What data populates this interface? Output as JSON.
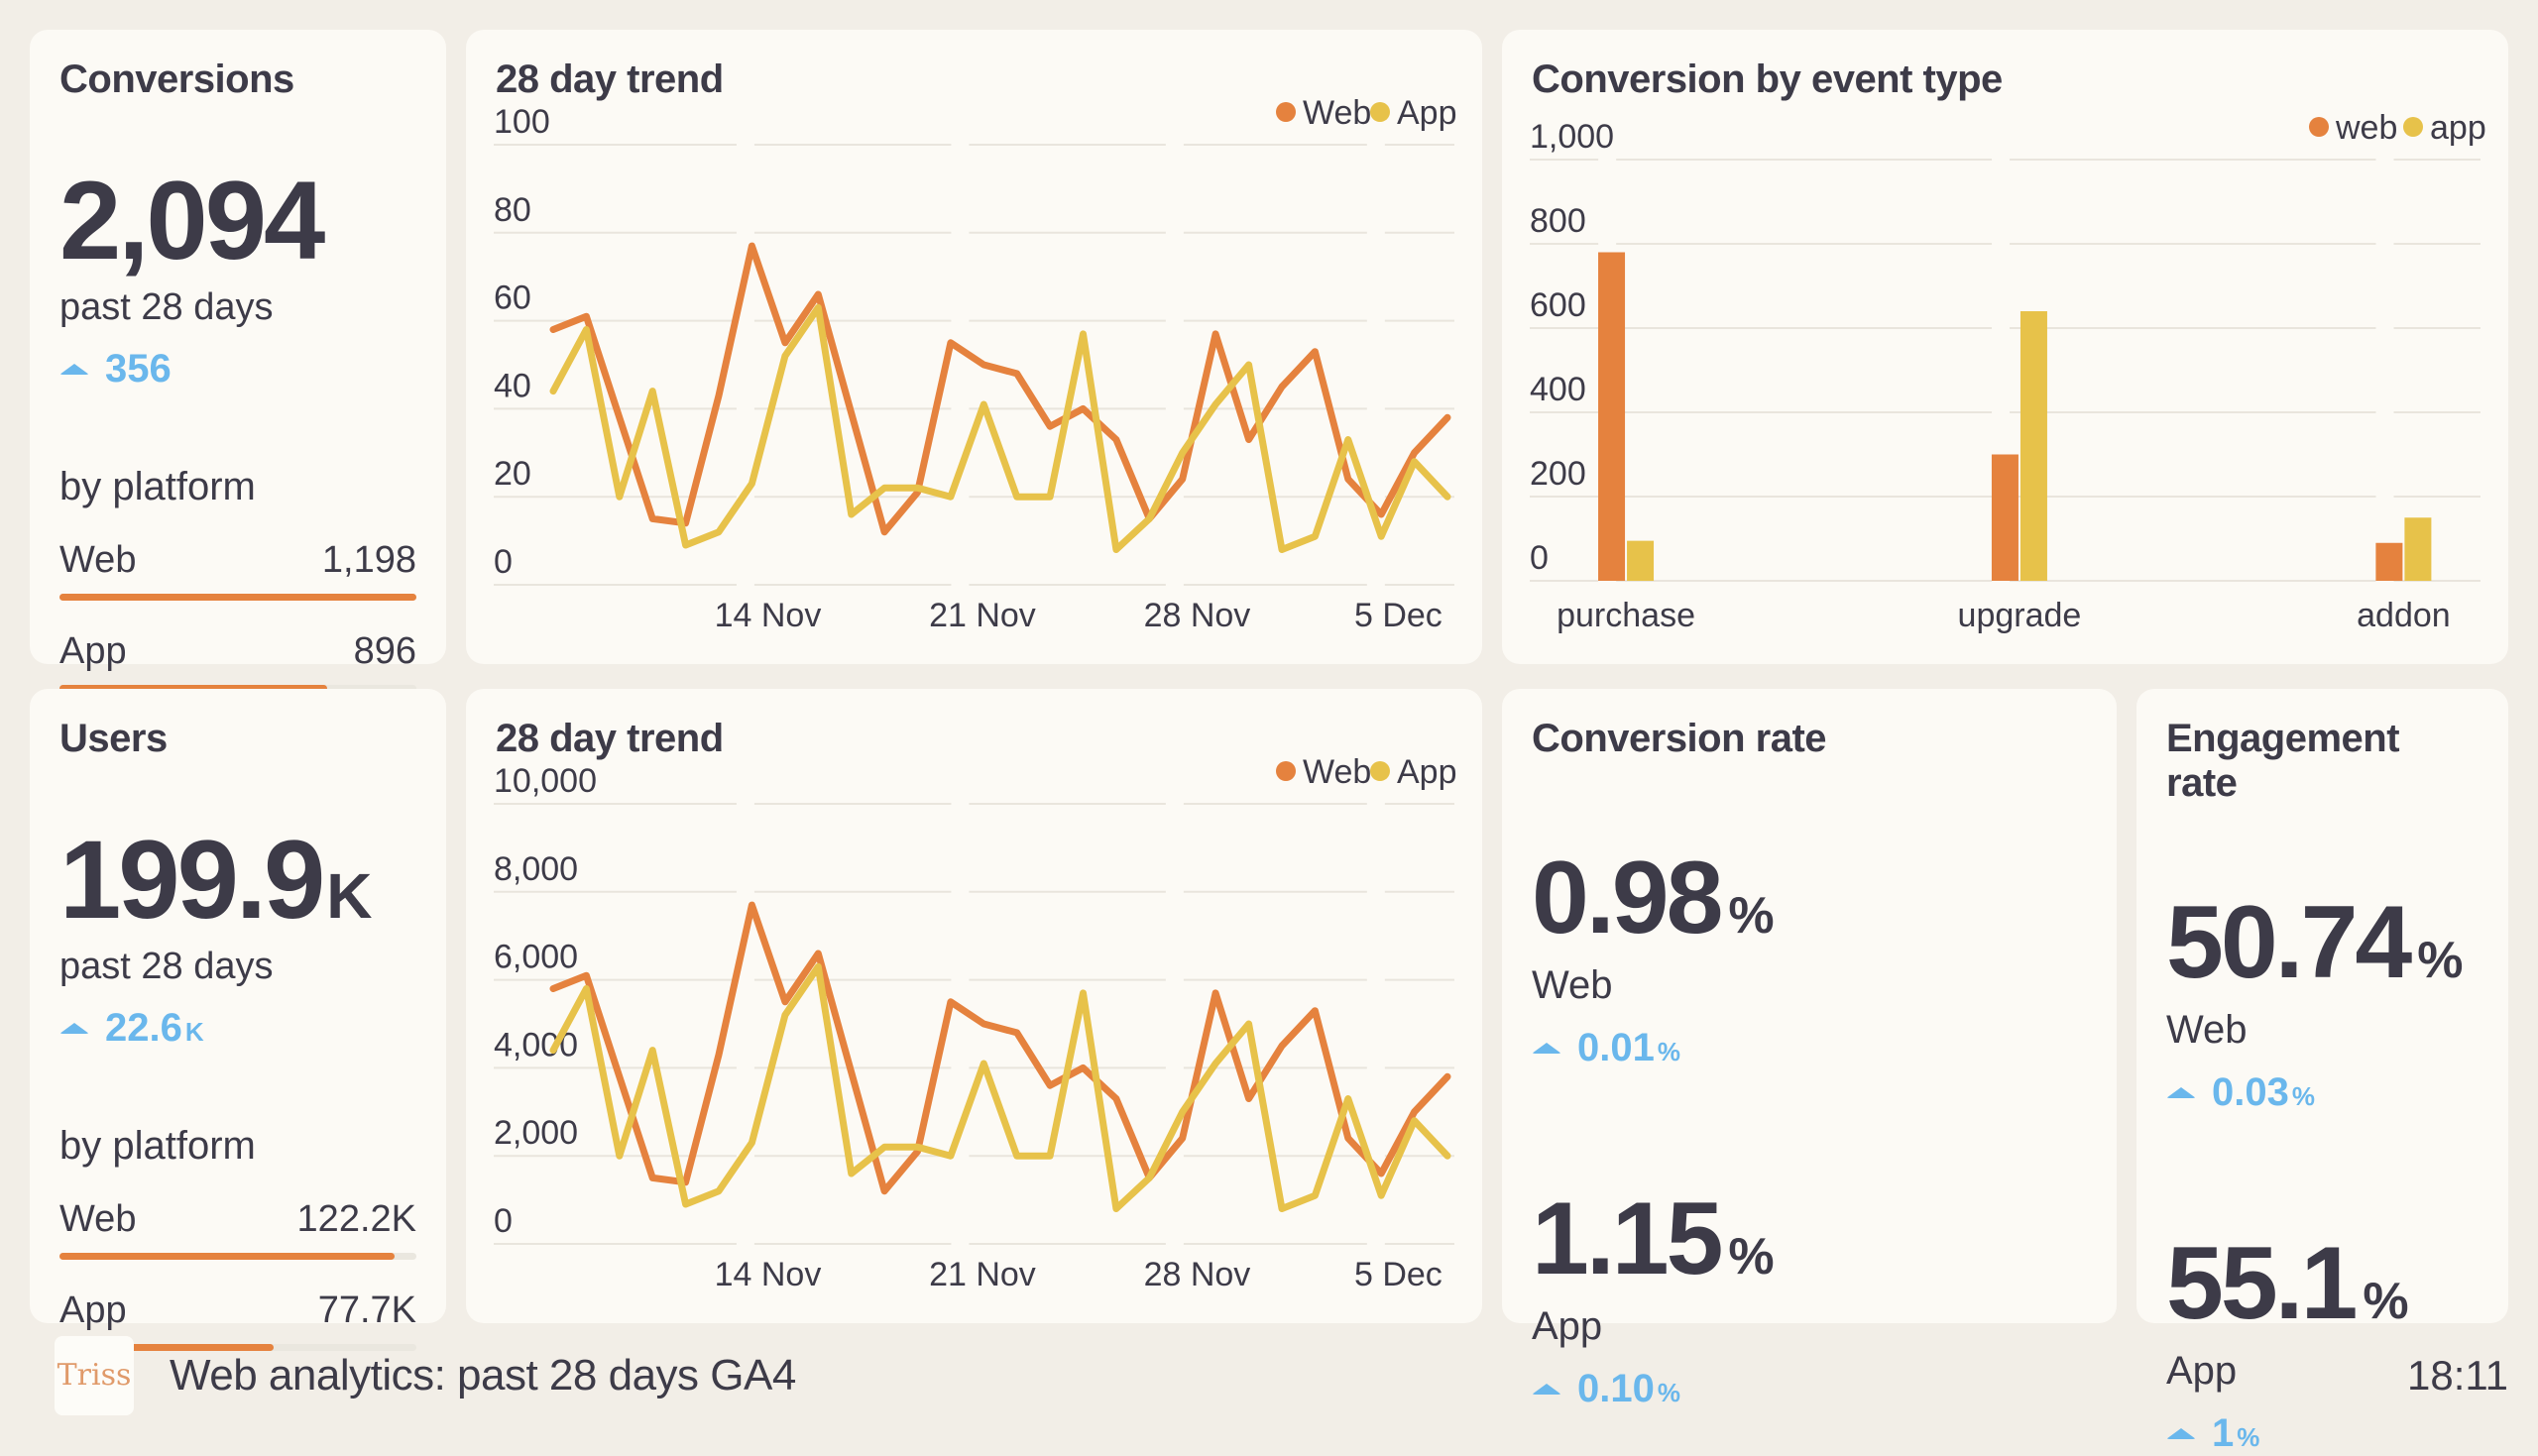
{
  "colors": {
    "background": "#f2eee7",
    "card": "#fcfaf5",
    "text": "#3d3b48",
    "accent_blue": "#6ab7ec",
    "web_orange": "#e5823e",
    "app_yellow": "#e7c24a",
    "gridline": "#e9e5dd",
    "bar_track": "#eae7df"
  },
  "cards": {
    "conversions": {
      "title": "Conversions",
      "value": "2,094",
      "value_suffix": "",
      "period": "past 28 days",
      "delta": "356",
      "delta_suffix": "",
      "by_platform_label": "by platform",
      "platforms": [
        {
          "label": "Web",
          "value": "1,198",
          "bar_pct": 100
        },
        {
          "label": "App",
          "value": "896",
          "bar_pct": 75
        }
      ]
    },
    "users": {
      "title": "Users",
      "value": "199.9",
      "value_suffix": "K",
      "period": "past 28 days",
      "delta": "22.6",
      "delta_suffix": "K",
      "by_platform_label": "by platform",
      "platforms": [
        {
          "label": "Web",
          "value": "122.2K",
          "bar_pct": 94
        },
        {
          "label": "App",
          "value": "77.7K",
          "bar_pct": 60
        }
      ]
    },
    "conversion_rate": {
      "title": "Conversion rate",
      "entries": [
        {
          "value": "0.98",
          "suffix": "%",
          "label": "Web",
          "delta": "0.01",
          "delta_suffix": "%"
        },
        {
          "value": "1.15",
          "suffix": "%",
          "label": "App",
          "delta": "0.10",
          "delta_suffix": "%"
        }
      ]
    },
    "engagement_rate": {
      "title": "Engagement rate",
      "entries": [
        {
          "value": "50.74",
          "suffix": "%",
          "label": "Web",
          "delta": "0.03",
          "delta_suffix": "%"
        },
        {
          "value": "55.1",
          "suffix": "%",
          "label": "App",
          "delta": "1",
          "delta_suffix": "%"
        }
      ]
    }
  },
  "chart_data": [
    {
      "type": "line",
      "title": "28 day trend",
      "ylabel": "",
      "xlabel": "",
      "ylim": [
        0,
        100
      ],
      "grid": true,
      "legend_position": "top-right",
      "yticks": [
        {
          "v": 0,
          "label": "0"
        },
        {
          "v": 20,
          "label": "20"
        },
        {
          "v": 40,
          "label": "40"
        },
        {
          "v": 60,
          "label": "60"
        },
        {
          "v": 80,
          "label": "80"
        },
        {
          "v": 100,
          "label": "100"
        }
      ],
      "x_ticks": [
        {
          "f": 0.24,
          "label": "14 Nov"
        },
        {
          "f": 0.48,
          "label": "21 Nov"
        },
        {
          "f": 0.72,
          "label": "28 Nov"
        },
        {
          "f": 0.945,
          "label": "5 Dec"
        }
      ],
      "series": [
        {
          "name": "Web",
          "color": "#e5823e",
          "values": [
            58,
            61,
            38,
            15,
            14,
            43,
            77,
            55,
            66,
            39,
            12,
            21,
            55,
            50,
            48,
            36,
            40,
            33,
            15,
            24,
            57,
            33,
            45,
            53,
            24,
            16,
            30,
            38
          ]
        },
        {
          "name": "App",
          "color": "#e7c24a",
          "values": [
            44,
            58,
            20,
            44,
            9,
            12,
            23,
            52,
            63,
            16,
            22,
            22,
            20,
            41,
            20,
            20,
            57,
            8,
            15,
            30,
            41,
            50,
            8,
            11,
            33,
            11,
            28,
            20
          ]
        }
      ]
    },
    {
      "type": "bar",
      "title": "Conversion by event type",
      "ylabel": "",
      "xlabel": "",
      "ylim": [
        0,
        1000
      ],
      "grid": true,
      "legend_position": "top-right",
      "yticks": [
        {
          "v": 0,
          "label": "0"
        },
        {
          "v": 200,
          "label": "200"
        },
        {
          "v": 400,
          "label": "400"
        },
        {
          "v": 600,
          "label": "600"
        },
        {
          "v": 800,
          "label": "800"
        },
        {
          "v": 1000,
          "label": "1,000"
        }
      ],
      "categories": [
        {
          "f": 0.09,
          "label": "purchase"
        },
        {
          "f": 0.51,
          "label": "upgrade"
        },
        {
          "f": 0.92,
          "label": "addon"
        }
      ],
      "series": [
        {
          "name": "web",
          "color": "#e5823e",
          "values": [
            780,
            300,
            90
          ]
        },
        {
          "name": "app",
          "color": "#e7c24a",
          "values": [
            95,
            640,
            150
          ]
        }
      ]
    },
    {
      "type": "line",
      "title": "28 day trend",
      "ylabel": "",
      "xlabel": "",
      "ylim": [
        0,
        10000
      ],
      "grid": true,
      "legend_position": "top-right",
      "yticks": [
        {
          "v": 0,
          "label": "0"
        },
        {
          "v": 2000,
          "label": "2,000"
        },
        {
          "v": 4000,
          "label": "4,000"
        },
        {
          "v": 6000,
          "label": "6,000"
        },
        {
          "v": 8000,
          "label": "8,000"
        },
        {
          "v": 10000,
          "label": "10,000"
        }
      ],
      "x_ticks": [
        {
          "f": 0.24,
          "label": "14 Nov"
        },
        {
          "f": 0.48,
          "label": "21 Nov"
        },
        {
          "f": 0.72,
          "label": "28 Nov"
        },
        {
          "f": 0.945,
          "label": "5 Dec"
        }
      ],
      "series": [
        {
          "name": "Web",
          "color": "#e5823e",
          "values": [
            5800,
            6100,
            3800,
            1500,
            1400,
            4300,
            7700,
            5500,
            6600,
            3900,
            1200,
            2100,
            5500,
            5000,
            4800,
            3600,
            4000,
            3300,
            1500,
            2400,
            5700,
            3300,
            4500,
            5300,
            2400,
            1600,
            3000,
            3800
          ]
        },
        {
          "name": "App",
          "color": "#e7c24a",
          "values": [
            4400,
            5800,
            2000,
            4400,
            900,
            1200,
            2300,
            5200,
            6300,
            1600,
            2200,
            2200,
            2000,
            4100,
            2000,
            2000,
            5700,
            800,
            1500,
            3000,
            4100,
            5000,
            800,
            1100,
            3300,
            1100,
            2800,
            2000
          ]
        }
      ]
    }
  ],
  "footer": {
    "logo": "Triss",
    "title": "Web analytics: past 28 days GA4",
    "time": "18:11"
  }
}
